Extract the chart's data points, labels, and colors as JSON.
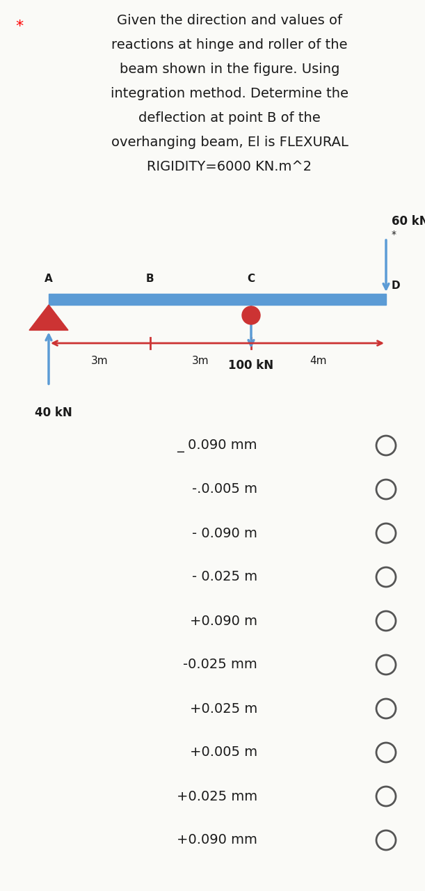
{
  "bg_color": "#fafaf7",
  "title_star": "*",
  "title_lines": [
    "Given the direction and values of",
    "reactions at hinge and roller of the",
    "beam shown in the figure. Using",
    "integration method. Determine the",
    "deflection at point B of the",
    "overhanging beam, El is FLEXURAL",
    "RIGIDITY=6000 KN.m^2"
  ],
  "beam_color": "#5b9bd5",
  "arrow_blue": "#5b9bd5",
  "arrow_red": "#cc3333",
  "triangle_red": "#cc3333",
  "roller_red": "#cc3333",
  "dim_color": "#cc3333",
  "text_dark": "#1a1a1a",
  "options": [
    "_ 0.090 mm",
    "-.0.005 m",
    "- 0.090 m",
    "- 0.025 m",
    "+0.090 m",
    "-0.025 mm",
    "+0.025 m",
    "+0.005 m",
    "+0.025 mm",
    "+0.090 mm"
  ]
}
